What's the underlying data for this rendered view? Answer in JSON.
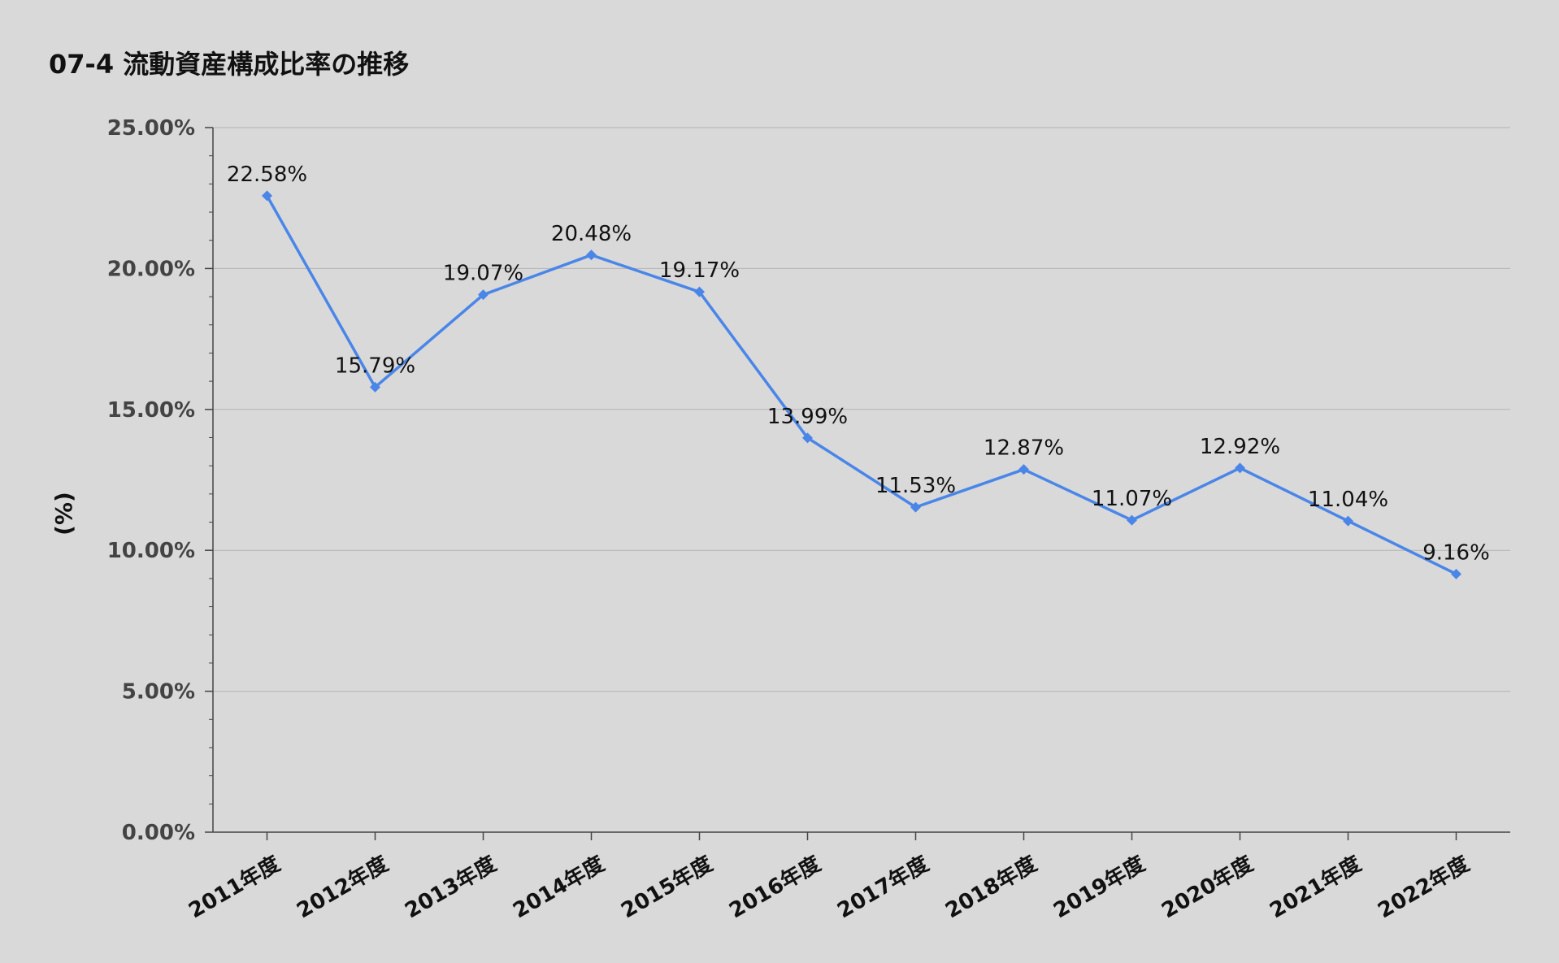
{
  "chart_data": {
    "type": "line",
    "title": "07-4 流動資産構成比率の推移",
    "ylabel": "(%)",
    "xlabel": "",
    "categories": [
      "2011年度",
      "2012年度",
      "2013年度",
      "2014年度",
      "2015年度",
      "2016年度",
      "2017年度",
      "2018年度",
      "2019年度",
      "2020年度",
      "2021年度",
      "2022年度"
    ],
    "series": [
      {
        "values": [
          22.58,
          15.79,
          19.07,
          20.48,
          19.17,
          13.99,
          11.53,
          12.87,
          11.07,
          12.92,
          11.04,
          9.16
        ],
        "labels": [
          "22.58%",
          "15.79%",
          "19.07%",
          "20.48%",
          "19.17%",
          "13.99%",
          "11.53%",
          "12.87%",
          "11.07%",
          "12.92%",
          "11.04%",
          "9.16%"
        ],
        "color": "#4a86e8"
      }
    ],
    "ylim": [
      0,
      25
    ],
    "yticks": [
      0,
      5,
      10,
      15,
      20,
      25
    ],
    "ytick_labels": [
      "0.00%",
      "5.00%",
      "10.00%",
      "15.00%",
      "20.00%",
      "25.00%"
    ],
    "grid": true,
    "legend": "none",
    "colors": {
      "background": "#d9d9d9",
      "grid": "#b3b3b3",
      "axis": "#444444"
    }
  }
}
